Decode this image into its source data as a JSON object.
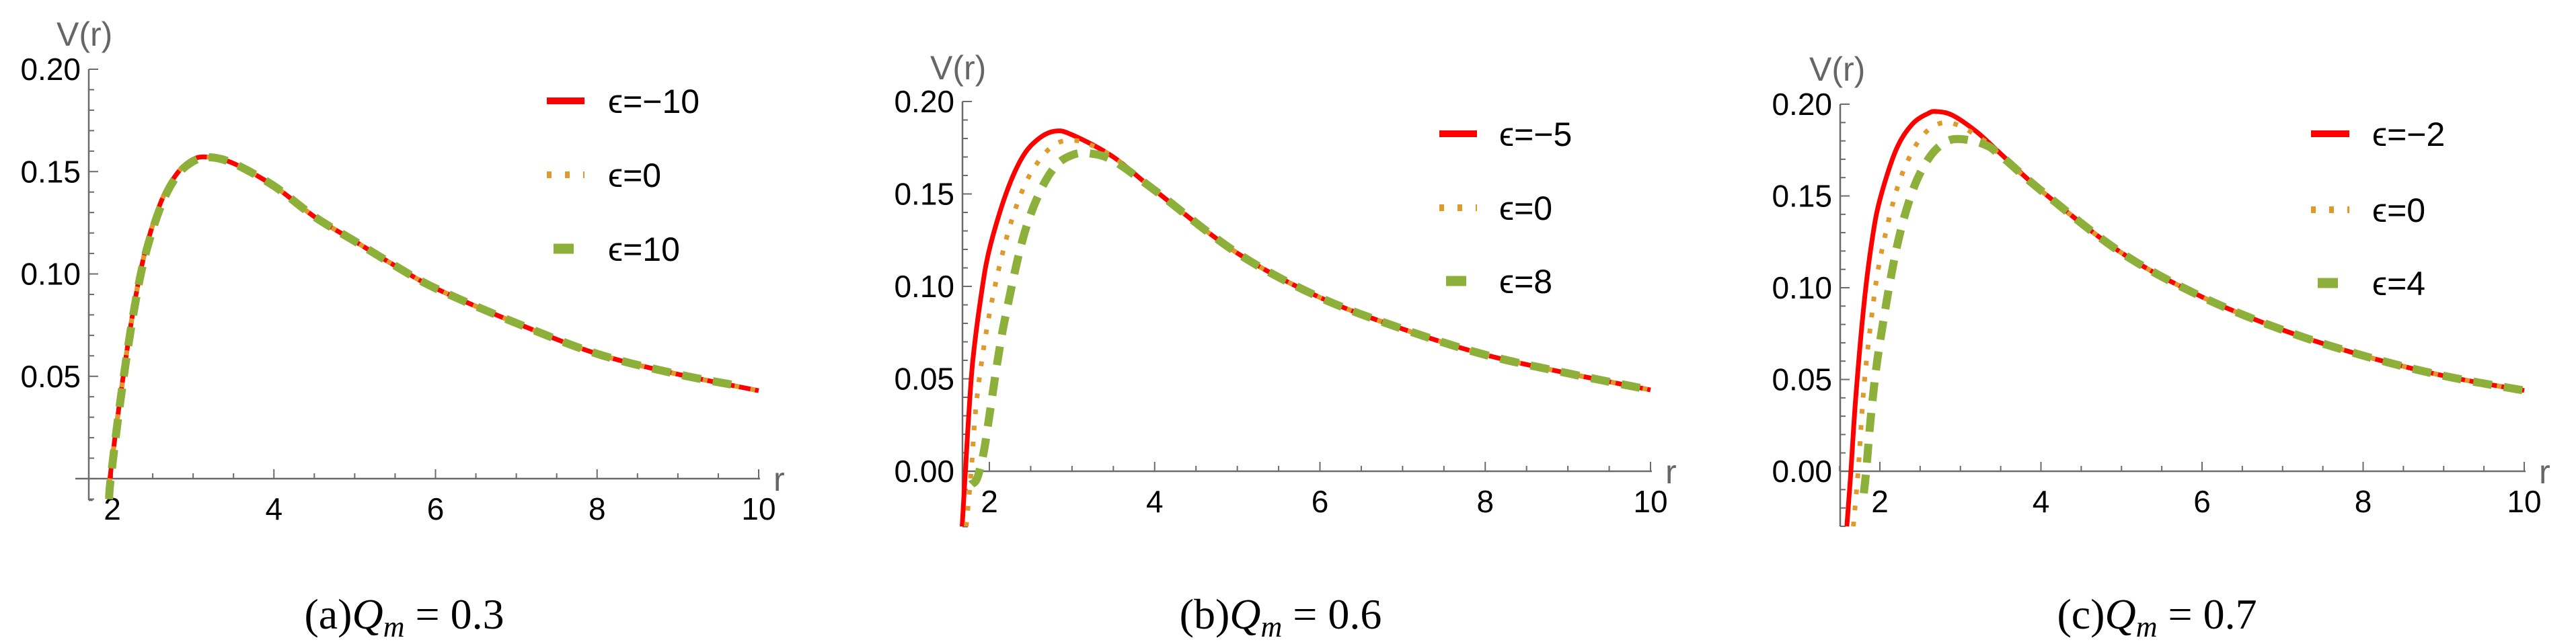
{
  "chart_data": [
    {
      "type": "line",
      "panel": "a",
      "caption": {
        "prefix": "(a)",
        "var": "Q",
        "sub": "m",
        "rest": " = 0.3"
      },
      "xlabel": "r",
      "ylabel": "V(r)",
      "xlim": [
        1.7,
        10
      ],
      "ylim": [
        -0.01,
        0.2
      ],
      "xticks": [
        2,
        4,
        6,
        8,
        10
      ],
      "xtick_labels": [
        "2",
        "4",
        "6",
        "8",
        "10"
      ],
      "yticks": [
        0.05,
        0.1,
        0.15,
        0.2
      ],
      "ytick_labels": [
        "0.05",
        "0.10",
        "0.15",
        "0.20"
      ],
      "grid": false,
      "legend_position": "top-right",
      "series": [
        {
          "name": "ϵ=−10",
          "style": "solid",
          "color": "#ff0000",
          "x": [
            1.95,
            1.97,
            2.1,
            2.25,
            2.4,
            2.6,
            2.8,
            3.0,
            3.2,
            3.5,
            4.0,
            4.5,
            5.0,
            5.5,
            6.0,
            7.0,
            8.0,
            9.0,
            10.0
          ],
          "y": [
            -0.01,
            0,
            0.04,
            0.08,
            0.11,
            0.135,
            0.149,
            0.156,
            0.157,
            0.154,
            0.143,
            0.128,
            0.116,
            0.104,
            0.093,
            0.076,
            0.061,
            0.051,
            0.043
          ]
        },
        {
          "name": "ϵ=0",
          "style": "dotted",
          "color": "#e09a2c",
          "x": [
            1.95,
            1.97,
            2.1,
            2.25,
            2.4,
            2.6,
            2.8,
            3.0,
            3.2,
            3.5,
            4.0,
            4.5,
            5.0,
            5.5,
            6.0,
            7.0,
            8.0,
            9.0,
            10.0
          ],
          "y": [
            -0.01,
            0,
            0.04,
            0.08,
            0.11,
            0.135,
            0.149,
            0.156,
            0.157,
            0.154,
            0.143,
            0.128,
            0.116,
            0.104,
            0.093,
            0.076,
            0.061,
            0.051,
            0.043
          ]
        },
        {
          "name": "ϵ=10",
          "style": "dashed",
          "color": "#8db03a",
          "x": [
            1.96,
            1.98,
            2.1,
            2.25,
            2.4,
            2.6,
            2.8,
            3.0,
            3.2,
            3.5,
            4.0,
            4.5,
            5.0,
            5.5,
            6.0,
            7.0,
            8.0,
            9.0,
            9.8
          ],
          "y": [
            -0.01,
            0,
            0.038,
            0.078,
            0.108,
            0.133,
            0.148,
            0.155,
            0.157,
            0.154,
            0.143,
            0.128,
            0.116,
            0.104,
            0.093,
            0.076,
            0.061,
            0.051,
            0.045
          ]
        }
      ]
    },
    {
      "type": "line",
      "panel": "b",
      "caption": {
        "prefix": "(b)",
        "var": "Q",
        "sub": "m",
        "rest": " = 0.6"
      },
      "xlabel": "r",
      "ylabel": "V(r)",
      "xlim": [
        1.67,
        10
      ],
      "ylim": [
        -0.03,
        0.2
      ],
      "xticks": [
        2,
        4,
        6,
        8,
        10
      ],
      "xtick_labels": [
        "2",
        "4",
        "6",
        "8",
        "10"
      ],
      "yticks": [
        0.0,
        0.05,
        0.1,
        0.15,
        0.2
      ],
      "ytick_labels": [
        "0.00",
        "0.05",
        "0.10",
        "0.15",
        "0.20"
      ],
      "grid": false,
      "legend_position": "top-right",
      "series": [
        {
          "name": "ϵ=−5",
          "style": "solid",
          "color": "#ff0000",
          "x": [
            1.67,
            1.71,
            1.75,
            1.8,
            1.9,
            2.0,
            2.2,
            2.4,
            2.6,
            2.8,
            3.0,
            3.5,
            4.0,
            5.0,
            6.0,
            7.0,
            8.0,
            9.0,
            10.0
          ],
          "y": [
            -0.03,
            0,
            0.03,
            0.06,
            0.095,
            0.12,
            0.15,
            0.17,
            0.18,
            0.184,
            0.182,
            0.17,
            0.152,
            0.118,
            0.094,
            0.077,
            0.063,
            0.053,
            0.044
          ]
        },
        {
          "name": "ϵ=0",
          "style": "dotted",
          "color": "#e09a2c",
          "x": [
            1.72,
            1.78,
            1.85,
            2.0,
            2.2,
            2.4,
            2.6,
            2.8,
            3.0,
            3.2,
            3.5,
            4.0,
            5.0,
            6.0,
            7.0,
            8.0,
            9.0,
            10.0
          ],
          "y": [
            -0.03,
            0,
            0.04,
            0.085,
            0.125,
            0.152,
            0.168,
            0.177,
            0.179,
            0.177,
            0.17,
            0.152,
            0.118,
            0.094,
            0.077,
            0.063,
            0.053,
            0.044
          ]
        },
        {
          "name": "ϵ=8",
          "style": "dashed",
          "color": "#8db03a",
          "x": [
            1.78,
            1.85,
            1.93,
            2.0,
            2.1,
            2.2,
            2.4,
            2.6,
            2.8,
            3.0,
            3.2,
            3.5,
            4.0,
            5.0,
            6.0,
            7.0,
            8.0,
            9.0,
            10.0
          ],
          "y": [
            -0.007,
            -0.004,
            0.01,
            0.03,
            0.06,
            0.085,
            0.125,
            0.15,
            0.165,
            0.171,
            0.172,
            0.168,
            0.152,
            0.118,
            0.094,
            0.077,
            0.063,
            0.053,
            0.044
          ]
        }
      ]
    },
    {
      "type": "line",
      "panel": "c",
      "caption": {
        "prefix": "(c)",
        "var": "Q",
        "sub": "m",
        "rest": " = 0.7"
      },
      "xlabel": "r",
      "ylabel": "V(r)",
      "xlim": [
        1.5,
        10
      ],
      "ylim": [
        -0.03,
        0.2
      ],
      "xticks": [
        2,
        4,
        6,
        8,
        10
      ],
      "xtick_labels": [
        "2",
        "4",
        "6",
        "8",
        "10"
      ],
      "yticks": [
        0.0,
        0.05,
        0.1,
        0.15,
        0.2
      ],
      "ytick_labels": [
        "0.00",
        "0.05",
        "0.10",
        "0.15",
        "0.20"
      ],
      "grid": false,
      "legend_position": "top-right",
      "series": [
        {
          "name": "ϵ=−2",
          "style": "solid",
          "color": "#ff0000",
          "x": [
            1.59,
            1.64,
            1.7,
            1.8,
            1.9,
            2.0,
            2.2,
            2.4,
            2.6,
            2.7,
            2.9,
            3.2,
            3.5,
            4.0,
            5.0,
            6.0,
            7.0,
            8.0,
            9.0,
            10.0
          ],
          "y": [
            -0.03,
            0,
            0.04,
            0.09,
            0.125,
            0.148,
            0.175,
            0.189,
            0.195,
            0.196,
            0.194,
            0.185,
            0.173,
            0.153,
            0.119,
            0.095,
            0.077,
            0.063,
            0.052,
            0.044
          ]
        },
        {
          "name": "ϵ=0",
          "style": "dotted",
          "color": "#e09a2c",
          "x": [
            1.67,
            1.73,
            1.8,
            1.9,
            2.0,
            2.2,
            2.4,
            2.6,
            2.8,
            3.0,
            3.3,
            3.5,
            4.0,
            5.0,
            6.0,
            7.0,
            8.0,
            9.0,
            10.0
          ],
          "y": [
            -0.03,
            0,
            0.045,
            0.085,
            0.115,
            0.152,
            0.174,
            0.186,
            0.19,
            0.188,
            0.18,
            0.172,
            0.153,
            0.119,
            0.095,
            0.077,
            0.063,
            0.052,
            0.044
          ]
        },
        {
          "name": "ϵ=4",
          "style": "dashed",
          "color": "#8db03a",
          "x": [
            1.8,
            1.83,
            1.9,
            2.0,
            2.2,
            2.4,
            2.6,
            2.8,
            3.0,
            3.3,
            3.5,
            4.0,
            5.0,
            6.0,
            7.0,
            8.0,
            9.0,
            10.0
          ],
          "y": [
            -0.012,
            0,
            0.035,
            0.07,
            0.12,
            0.152,
            0.17,
            0.179,
            0.181,
            0.178,
            0.172,
            0.153,
            0.119,
            0.095,
            0.077,
            0.063,
            0.052,
            0.044
          ]
        }
      ]
    }
  ]
}
